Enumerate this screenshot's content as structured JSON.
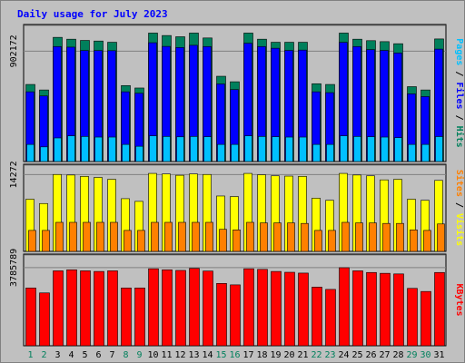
{
  "colors": {
    "background": "#c0c0c0",
    "panel": "#c0c0c0",
    "title": "#0000ff",
    "hits": "#00805c",
    "files": "#0000ff",
    "pages": "#00c0ff",
    "visits": "#ffff00",
    "sites": "#ff8000",
    "kbytes": "#ff0000",
    "weekday_label": "#000000",
    "weekend_label": "#00805c"
  },
  "chart_data": {
    "type": "bar",
    "title": "Daily usage for July 2023",
    "categories": [
      "1",
      "2",
      "3",
      "4",
      "5",
      "6",
      "7",
      "8",
      "9",
      "10",
      "11",
      "12",
      "13",
      "14",
      "15",
      "16",
      "17",
      "18",
      "19",
      "20",
      "21",
      "22",
      "23",
      "24",
      "25",
      "26",
      "27",
      "28",
      "29",
      "30",
      "31"
    ],
    "weekend_days": [
      "1",
      "2",
      "8",
      "9",
      "15",
      "16",
      "22",
      "23",
      "29",
      "30"
    ],
    "panels": [
      {
        "id": "top",
        "ytick_label": "902172",
        "ylim": [
          0,
          1120000
        ],
        "right_label": [
          {
            "text": "Pages",
            "color": "#00c0ff"
          },
          {
            "text": " / ",
            "color": "#000000"
          },
          {
            "text": "Files",
            "color": "#0000ff"
          },
          {
            "text": " / ",
            "color": "#000000"
          },
          {
            "text": "Hits",
            "color": "#00805c"
          }
        ],
        "series": [
          {
            "key": "hits",
            "values": [
              630000,
              585000,
              1015000,
              1000000,
              990000,
              985000,
              975000,
              621000,
              601000,
              1050000,
              1030000,
              1020000,
              1050000,
              1010000,
              697000,
              652000,
              1050000,
              1000000,
              975000,
              975000,
              975000,
              636000,
              630000,
              1050000,
              1000000,
              988000,
              980000,
              963000,
              612000,
              585000,
              1002000
            ]
          },
          {
            "key": "files",
            "values": [
              570000,
              536000,
              940000,
              935000,
              907000,
              907000,
              906000,
              570000,
              558000,
              971000,
              941000,
              932000,
              950000,
              940000,
              634000,
              588000,
              967000,
              940000,
              926000,
              908000,
              911000,
              570000,
              563000,
              974000,
              940000,
              915000,
              908000,
              887000,
              553000,
              531000,
              919000
            ]
          },
          {
            "key": "pages",
            "values": [
              140000,
              120000,
              193000,
              210000,
              205000,
              200000,
              200000,
              140000,
              125000,
              210000,
              205000,
              202000,
              205000,
              203000,
              140000,
              140000,
              210000,
              205000,
              203000,
              200000,
              200000,
              140000,
              140000,
              210000,
              205000,
              203000,
              200000,
              195000,
              140000,
              140000,
              204000
            ]
          }
        ]
      },
      {
        "id": "middle",
        "ytick_label": "14272",
        "ylim": [
          0,
          16200
        ],
        "right_label": [
          {
            "text": "Sites",
            "color": "#ff8000"
          },
          {
            "text": " / ",
            "color": "#000000"
          },
          {
            "text": "Visits",
            "color": "#ffff00"
          }
        ],
        "series": [
          {
            "key": "visits",
            "values": [
              9700,
              8900,
              14300,
              14200,
              13950,
              13750,
              13400,
              9800,
              9300,
              14500,
              14400,
              14150,
              14400,
              14300,
              10300,
              10200,
              14500,
              14250,
              14050,
              14000,
              13950,
              9900,
              9500,
              14500,
              14200,
              14050,
              13300,
              13400,
              9700,
              9500,
              13200
            ]
          },
          {
            "key": "sites",
            "values": [
              3900,
              3900,
              5400,
              5400,
              5400,
              5400,
              5400,
              3900,
              3900,
              5400,
              5400,
              5400,
              5400,
              5400,
              4100,
              4000,
              5400,
              5300,
              5300,
              5300,
              5200,
              3900,
              3900,
              5400,
              5300,
              5300,
              5200,
              5200,
              4000,
              3900,
              5100
            ]
          }
        ]
      },
      {
        "id": "bottom",
        "ytick_label": "3785789",
        "ylim": [
          0,
          4440000
        ],
        "right_label": [
          {
            "text": "KBytes",
            "color": "#ff0000"
          }
        ],
        "series": [
          {
            "key": "kbytes",
            "values": [
              2800000,
              2560000,
              3630000,
              3680000,
              3630000,
              3600000,
              3630000,
              2800000,
              2800000,
              3730000,
              3680000,
              3650000,
              3750000,
              3620000,
              3020000,
              2950000,
              3730000,
              3700000,
              3600000,
              3560000,
              3520000,
              2840000,
              2730000,
              3780000,
              3630000,
              3550000,
              3510000,
              3480000,
              2780000,
              2630000,
              3550000
            ]
          }
        ]
      }
    ]
  }
}
